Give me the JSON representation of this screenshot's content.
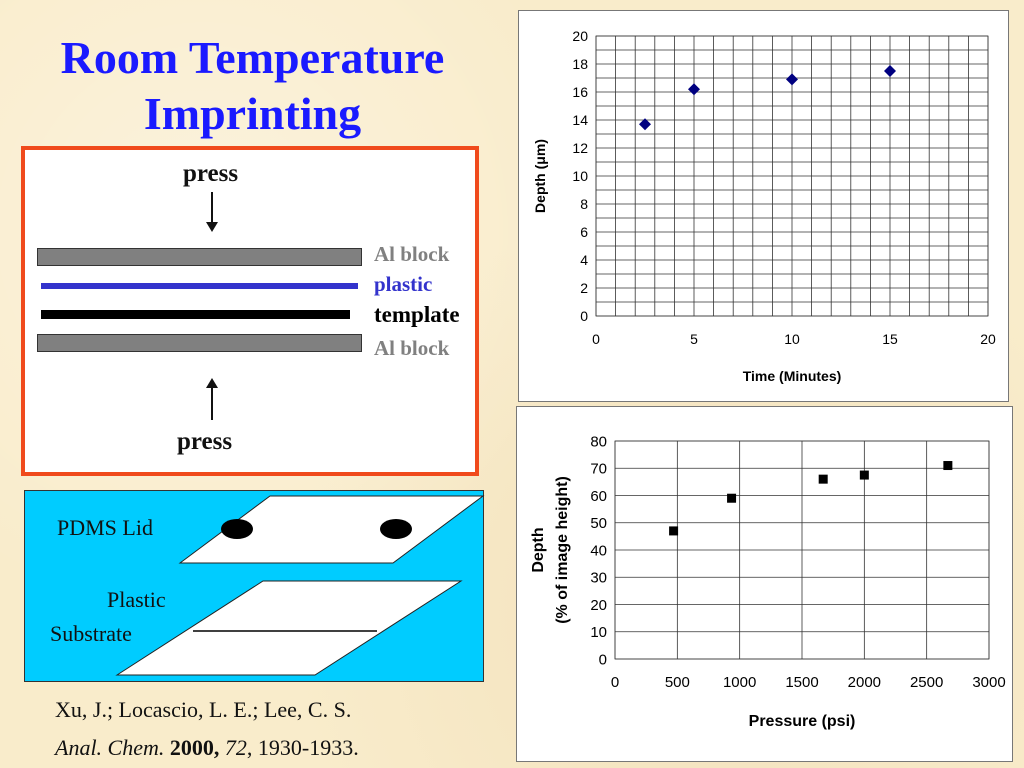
{
  "slide": {
    "title_line1": "Room Temperature",
    "title_line2": "Imprinting"
  },
  "press_diagram": {
    "press_top": "press",
    "press_bottom": "press",
    "layers": [
      {
        "label": "Al block",
        "color": "#808080",
        "label_color": "#808080"
      },
      {
        "label": "plastic",
        "color": "#3333cc",
        "label_color": "#3333cc"
      },
      {
        "label": "template",
        "color": "#000000",
        "label_color": "#000000"
      },
      {
        "label": "Al block",
        "color": "#808080",
        "label_color": "#808080"
      }
    ],
    "border_color": "#f04a1c"
  },
  "pdms_diagram": {
    "lid_label": "PDMS Lid",
    "substrate_label_line1": "Plastic",
    "substrate_label_line2": "Substrate",
    "background_color": "#00ccff"
  },
  "citation": {
    "authors": "Xu, J.; Locascio, L. E.; Lee, C. S.",
    "journal": "Anal. Chem.",
    "year": "2000,",
    "volume": "72",
    "pages": ", 1930-1933."
  },
  "chart_data": [
    {
      "type": "scatter",
      "title": "",
      "xlabel": "Time (Minutes)",
      "ylabel": "Depth (μm)",
      "xlim": [
        0,
        20
      ],
      "ylim": [
        0,
        20
      ],
      "xticks": [
        0,
        5,
        10,
        15,
        20
      ],
      "yticks": [
        0,
        2,
        4,
        6,
        8,
        10,
        12,
        14,
        16,
        18,
        20
      ],
      "grid": true,
      "marker": "diamond",
      "marker_color": "#000080",
      "series": [
        {
          "x": [
            2.5,
            5,
            10,
            15
          ],
          "y": [
            13.7,
            16.2,
            16.9,
            17.5
          ]
        }
      ]
    },
    {
      "type": "scatter",
      "title": "",
      "xlabel": "Pressure (psi)",
      "ylabel_line1": "Depth",
      "ylabel_line2": "(% of image height)",
      "xlim": [
        0,
        3000
      ],
      "ylim": [
        0,
        80
      ],
      "xticks": [
        0,
        500,
        1000,
        1500,
        2000,
        2500,
        3000
      ],
      "yticks": [
        0,
        10,
        20,
        30,
        40,
        50,
        60,
        70,
        80
      ],
      "grid": true,
      "marker": "square",
      "marker_color": "#000000",
      "series": [
        {
          "x": [
            470,
            935,
            1670,
            2000,
            2670
          ],
          "y": [
            47,
            59,
            66,
            67.5,
            71
          ]
        }
      ]
    }
  ]
}
